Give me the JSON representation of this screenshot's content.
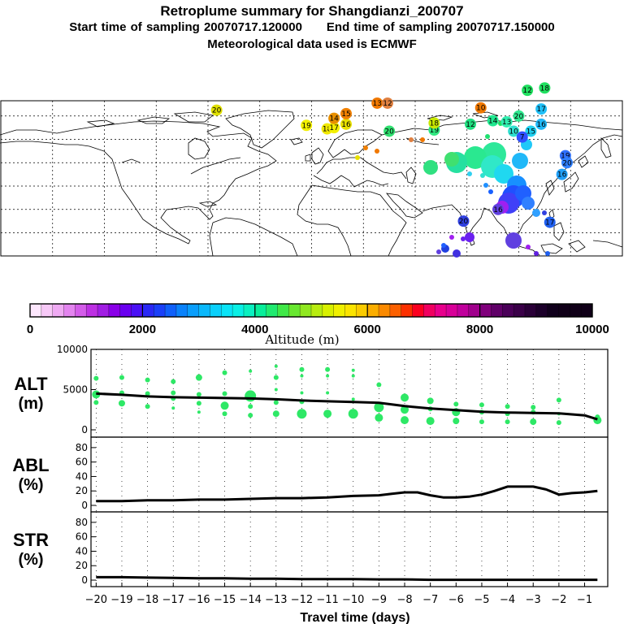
{
  "header": {
    "title": "Retroplume summary for Shangdianzi_200707",
    "start_label": "Start time of sampling 20070717.120000",
    "end_label": "End time of sampling 20070717.150000",
    "met_label": "Meteorological data used is ECMWF"
  },
  "map": {
    "plume_labels": [
      {
        "text": "20",
        "lon": -55,
        "lat": 65,
        "color": "#e0e000"
      },
      {
        "text": "19",
        "lon": -3,
        "lat": 52,
        "color": "#f2ef00"
      },
      {
        "text": "18",
        "lon": 9,
        "lat": 49,
        "color": "#f0e800"
      },
      {
        "text": "17",
        "lon": 13,
        "lat": 50,
        "color": "#f3f000"
      },
      {
        "text": "16",
        "lon": 20,
        "lat": 53,
        "color": "#e8e000"
      },
      {
        "text": "14",
        "lon": 13,
        "lat": 58,
        "color": "#e89000"
      },
      {
        "text": "15",
        "lon": 20,
        "lat": 62,
        "color": "#f08000"
      },
      {
        "text": "13",
        "lon": 38,
        "lat": 71,
        "color": "#f07800"
      },
      {
        "text": "12",
        "lon": 44,
        "lat": 71,
        "color": "#e08040"
      },
      {
        "text": "20",
        "lon": 45,
        "lat": 47,
        "color": "#30e070"
      },
      {
        "text": "19",
        "lon": 71,
        "lat": 48,
        "color": "#30e880"
      },
      {
        "text": "18",
        "lon": 71,
        "lat": 54,
        "color": "#c8e800"
      },
      {
        "text": "10",
        "lon": 98,
        "lat": 67,
        "color": "#f07800"
      },
      {
        "text": "14",
        "lon": 105,
        "lat": 56,
        "color": "#20e890"
      },
      {
        "text": "13",
        "lon": 113,
        "lat": 55,
        "color": "#30f0b0"
      },
      {
        "text": "20",
        "lon": 120,
        "lat": 60,
        "color": "#30e890"
      },
      {
        "text": "12",
        "lon": 92,
        "lat": 53,
        "color": "#20e080"
      },
      {
        "text": "10",
        "lon": 117,
        "lat": 47,
        "color": "#30e0d0"
      },
      {
        "text": "15",
        "lon": 127,
        "lat": 47,
        "color": "#20d0f0"
      },
      {
        "text": "16",
        "lon": 133,
        "lat": 53,
        "color": "#20b8f8"
      },
      {
        "text": "17",
        "lon": 133,
        "lat": 66,
        "color": "#20c0f8"
      },
      {
        "text": "12",
        "lon": 125,
        "lat": 82,
        "color": "#20e060"
      },
      {
        "text": "18",
        "lon": 135,
        "lat": 84,
        "color": "#20e060"
      },
      {
        "text": "7",
        "lon": 122,
        "lat": 42,
        "color": "#3050ff"
      },
      {
        "text": "19",
        "lon": 147,
        "lat": 26,
        "color": "#3070ff"
      },
      {
        "text": "20",
        "lon": 148,
        "lat": 20,
        "color": "#3080ff"
      },
      {
        "text": "16",
        "lon": 145,
        "lat": 10,
        "color": "#20a0f8"
      },
      {
        "text": "20",
        "lon": 88,
        "lat": -30,
        "color": "#3040e0"
      },
      {
        "text": "16",
        "lon": 108,
        "lat": -20,
        "color": "#6040e0"
      },
      {
        "text": "17",
        "lon": 138,
        "lat": -31,
        "color": "#2060f0"
      }
    ]
  },
  "colorbar": {
    "label": "Altitude (m)",
    "ticks": [
      "0",
      "2000",
      "4000",
      "6000",
      "8000",
      "10000"
    ],
    "colors": [
      "#fde7fd",
      "#f7c9f7",
      "#efaaf3",
      "#e384ef",
      "#d35ce9",
      "#bd30e3",
      "#a11ee3",
      "#8a00e8",
      "#6a00f0",
      "#4a10f5",
      "#2a28f5",
      "#1a40f8",
      "#1060fa",
      "#0a82fb",
      "#0a9efb",
      "#0ab8fb",
      "#0ad0fb",
      "#0ae4f7",
      "#0af0e5",
      "#0af0c0",
      "#08ee9a",
      "#20ea70",
      "#40e848",
      "#68e830",
      "#90e820",
      "#b8ec10",
      "#d8f000",
      "#f0f000",
      "#fbe400",
      "#fbcc00",
      "#fbae00",
      "#fb8a00",
      "#fb6000",
      "#fb3000",
      "#fb0020",
      "#f00060",
      "#e8008c",
      "#d80098",
      "#c0009c",
      "#a0008c",
      "#80007c",
      "#600068",
      "#4a0058",
      "#3a0048",
      "#2a0038",
      "#1c002a",
      "#10001c",
      "#100018",
      "#100018",
      "#100018"
    ]
  },
  "charts": {
    "x_label": "Travel time (days)",
    "x_ticks": [
      "−20",
      "−19",
      "−18",
      "−17",
      "−16",
      "−15",
      "−14",
      "−13",
      "−12",
      "−11",
      "−10",
      "−9",
      "−8",
      "−7",
      "−6",
      "−5",
      "−4",
      "−3",
      "−2",
      "−1"
    ]
  },
  "chart_data": [
    {
      "type": "line",
      "name": "ALT",
      "ylabel": "ALT (m)",
      "ylabel_line1": "ALT",
      "ylabel_line2": "(m)",
      "ylim": [
        0,
        10000
      ],
      "yticks": [
        "0",
        "5000",
        "10000"
      ],
      "x": [
        -20,
        -19,
        -18,
        -17,
        -16,
        -15,
        -14,
        -13,
        -12,
        -11,
        -10,
        -9,
        -8,
        -7,
        -6,
        -5,
        -4,
        -3,
        -2,
        -1,
        -0.5
      ],
      "values": [
        4500,
        4350,
        4150,
        4050,
        4000,
        3950,
        3900,
        3800,
        3650,
        3550,
        3450,
        3350,
        2950,
        2650,
        2450,
        2250,
        2150,
        2100,
        2050,
        1800,
        1300
      ],
      "scatter": [
        {
          "x": -20,
          "y": 6400,
          "r": 3
        },
        {
          "x": -20,
          "y": 4400,
          "r": 5
        },
        {
          "x": -20,
          "y": 3400,
          "r": 3
        },
        {
          "x": -19,
          "y": 6500,
          "r": 3
        },
        {
          "x": -19,
          "y": 4600,
          "r": 3
        },
        {
          "x": -19,
          "y": 3300,
          "r": 4
        },
        {
          "x": -18,
          "y": 6200,
          "r": 3
        },
        {
          "x": -18,
          "y": 4500,
          "r": 3
        },
        {
          "x": -18,
          "y": 2900,
          "r": 3
        },
        {
          "x": -17,
          "y": 6000,
          "r": 3
        },
        {
          "x": -17,
          "y": 4600,
          "r": 3
        },
        {
          "x": -17,
          "y": 3900,
          "r": 3
        },
        {
          "x": -17,
          "y": 2700,
          "r": 2
        },
        {
          "x": -16,
          "y": 6500,
          "r": 4
        },
        {
          "x": -16,
          "y": 4400,
          "r": 3
        },
        {
          "x": -16,
          "y": 3300,
          "r": 3
        },
        {
          "x": -16,
          "y": 2200,
          "r": 2
        },
        {
          "x": -15,
          "y": 7100,
          "r": 3
        },
        {
          "x": -15,
          "y": 4500,
          "r": 3
        },
        {
          "x": -15,
          "y": 3000,
          "r": 5
        },
        {
          "x": -15,
          "y": 2000,
          "r": 3
        },
        {
          "x": -14,
          "y": 7300,
          "r": 2
        },
        {
          "x": -14,
          "y": 4200,
          "r": 7
        },
        {
          "x": -14,
          "y": 2900,
          "r": 3
        },
        {
          "x": -14,
          "y": 1800,
          "r": 3
        },
        {
          "x": -13,
          "y": 7900,
          "r": 2
        },
        {
          "x": -13,
          "y": 6500,
          "r": 3
        },
        {
          "x": -13,
          "y": 5000,
          "r": 2
        },
        {
          "x": -13,
          "y": 3400,
          "r": 3
        },
        {
          "x": -13,
          "y": 2000,
          "r": 4
        },
        {
          "x": -12,
          "y": 7500,
          "r": 3
        },
        {
          "x": -12,
          "y": 6700,
          "r": 2
        },
        {
          "x": -12,
          "y": 4600,
          "r": 2
        },
        {
          "x": -12,
          "y": 3500,
          "r": 3
        },
        {
          "x": -12,
          "y": 2000,
          "r": 6
        },
        {
          "x": -11,
          "y": 7500,
          "r": 3
        },
        {
          "x": -11,
          "y": 6700,
          "r": 2
        },
        {
          "x": -11,
          "y": 4600,
          "r": 2
        },
        {
          "x": -11,
          "y": 2000,
          "r": 5
        },
        {
          "x": -10,
          "y": 7400,
          "r": 2
        },
        {
          "x": -10,
          "y": 6700,
          "r": 2
        },
        {
          "x": -10,
          "y": 3800,
          "r": 2
        },
        {
          "x": -10,
          "y": 2000,
          "r": 6
        },
        {
          "x": -9,
          "y": 5600,
          "r": 3
        },
        {
          "x": -9,
          "y": 2800,
          "r": 6
        },
        {
          "x": -9,
          "y": 1500,
          "r": 5
        },
        {
          "x": -8,
          "y": 4000,
          "r": 5
        },
        {
          "x": -8,
          "y": 2500,
          "r": 5
        },
        {
          "x": -8,
          "y": 1200,
          "r": 5
        },
        {
          "x": -7,
          "y": 3600,
          "r": 4
        },
        {
          "x": -7,
          "y": 2600,
          "r": 3
        },
        {
          "x": -7,
          "y": 1100,
          "r": 5
        },
        {
          "x": -6,
          "y": 3200,
          "r": 3
        },
        {
          "x": -6,
          "y": 2200,
          "r": 5
        },
        {
          "x": -6,
          "y": 1100,
          "r": 4
        },
        {
          "x": -5,
          "y": 3100,
          "r": 3
        },
        {
          "x": -5,
          "y": 2200,
          "r": 3
        },
        {
          "x": -5,
          "y": 1000,
          "r": 3
        },
        {
          "x": -4,
          "y": 2900,
          "r": 3
        },
        {
          "x": -4,
          "y": 2000,
          "r": 3
        },
        {
          "x": -4,
          "y": 1000,
          "r": 3
        },
        {
          "x": -3,
          "y": 2800,
          "r": 3
        },
        {
          "x": -3,
          "y": 2200,
          "r": 3
        },
        {
          "x": -3,
          "y": 1000,
          "r": 4
        },
        {
          "x": -2,
          "y": 3700,
          "r": 3
        },
        {
          "x": -2,
          "y": 2000,
          "r": 2
        },
        {
          "x": -2,
          "y": 900,
          "r": 3
        },
        {
          "x": -0.5,
          "y": 1600,
          "r": 3
        },
        {
          "x": -0.5,
          "y": 1200,
          "r": 5
        }
      ]
    },
    {
      "type": "line",
      "name": "ABL",
      "ylabel": "ABL (%)",
      "ylabel_line1": "ABL",
      "ylabel_line2": "(%)",
      "ylim": [
        0,
        90
      ],
      "yticks": [
        "0",
        "20",
        "40",
        "60",
        "80"
      ],
      "x": [
        -20,
        -19,
        -18,
        -17,
        -16,
        -15,
        -14,
        -13,
        -12,
        -11,
        -10,
        -9,
        -8.5,
        -8,
        -7.5,
        -7,
        -6.5,
        -6,
        -5.5,
        -5,
        -4.5,
        -4,
        -3.5,
        -3,
        -2.5,
        -2,
        -1.5,
        -1,
        -0.5
      ],
      "values": [
        6,
        6,
        7,
        7,
        8,
        8,
        9,
        10,
        10,
        11,
        13,
        14,
        16,
        18,
        18,
        14,
        11,
        11,
        12,
        15,
        20,
        26,
        26,
        26,
        22,
        15,
        17,
        18,
        20
      ]
    },
    {
      "type": "line",
      "name": "STR",
      "ylabel": "STR (%)",
      "ylabel_line1": "STR",
      "ylabel_line2": "(%)",
      "ylim": [
        0,
        90
      ],
      "yticks": [
        "0",
        "20",
        "40",
        "60",
        "80"
      ],
      "x": [
        -20,
        -19,
        -18,
        -17,
        -16,
        -15,
        -14,
        -13,
        -12,
        -11,
        -10,
        -9,
        -8,
        -7,
        -6,
        -5,
        -4,
        -3,
        -2,
        -1,
        -0.5
      ],
      "values": [
        4,
        4,
        3.5,
        3,
        2.5,
        2.5,
        2,
        2,
        1.5,
        1.5,
        1.5,
        1,
        1,
        0.5,
        0.5,
        0.5,
        0.5,
        0.5,
        0.5,
        0.5,
        0.5
      ]
    }
  ]
}
